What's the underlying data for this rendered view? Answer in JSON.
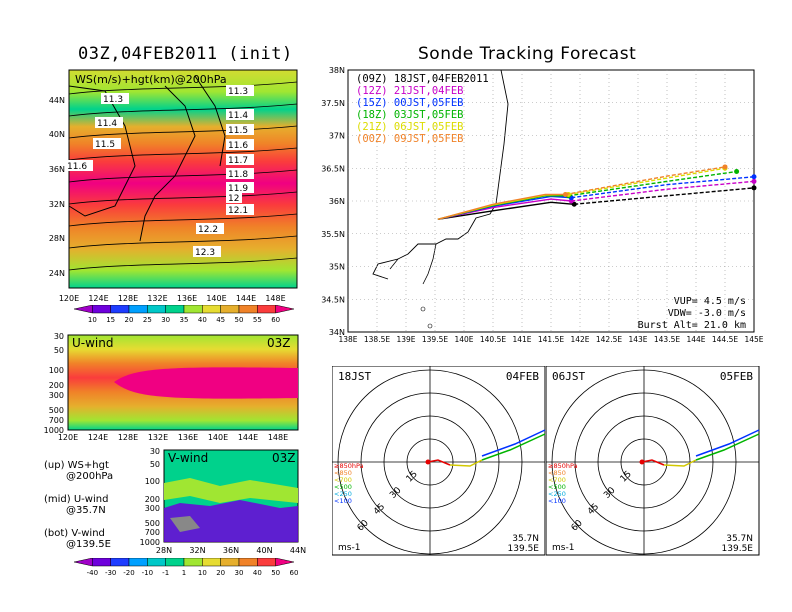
{
  "left_title": "03Z,04FEB2011 (init)",
  "right_title": "Sonde Tracking Forecast",
  "map_panel": {
    "label": "WS(m/s)+hgt(km)@200hPa",
    "lat_ticks": [
      "44N",
      "40N",
      "36N",
      "32N",
      "28N",
      "24N"
    ],
    "lon_ticks": [
      "120E",
      "124E",
      "128E",
      "132E",
      "136E",
      "140E",
      "144E",
      "148E"
    ],
    "contours": [
      "11.3",
      "11.3",
      "11.4",
      "11.4",
      "11.5",
      "11.5",
      "11.6",
      "11.6",
      "11.7",
      "11.8",
      "11.9",
      "12",
      "12.1",
      "12.2",
      "12.3"
    ]
  },
  "ws_colorbar": {
    "labels": [
      "10",
      "15",
      "20",
      "25",
      "30",
      "35",
      "40",
      "45",
      "50",
      "55",
      "60"
    ],
    "colors": [
      "#a000c8",
      "#6e00dc",
      "#1e3cff",
      "#00a0ff",
      "#00c8c8",
      "#00d28c",
      "#a0e632",
      "#e6dc32",
      "#e6af2d",
      "#f08228",
      "#fa3c3c",
      "#f00082"
    ]
  },
  "uwind_panel": {
    "label": "U-wind",
    "time": "03Z",
    "p_ticks": [
      "30",
      "50",
      "100",
      "200",
      "300",
      "500",
      "700",
      "1000"
    ],
    "lon_ticks": [
      "120E",
      "124E",
      "128E",
      "132E",
      "136E",
      "140E",
      "144E",
      "148E"
    ]
  },
  "vwind_panel": {
    "label": "V-wind",
    "time": "03Z",
    "p_ticks": [
      "30",
      "50",
      "100",
      "200",
      "300",
      "500",
      "700",
      "1000"
    ],
    "lat_ticks": [
      "28N",
      "32N",
      "36N",
      "40N",
      "44N"
    ]
  },
  "vwind_colorbar": {
    "labels": [
      "-40",
      "-30",
      "-20",
      "-10",
      "-1",
      "1",
      "10",
      "20",
      "30",
      "40",
      "50",
      "60"
    ],
    "colors": [
      "#a000c8",
      "#6e00dc",
      "#1e3cff",
      "#00a0ff",
      "#00c8c8",
      "#00d28c",
      "#a0e632",
      "#e6dc32",
      "#e6af2d",
      "#f08228",
      "#fa3c3c",
      "#f00082"
    ]
  },
  "legend_notes": [
    {
      "line1": "(up) WS+hgt",
      "line2": "@200hPa"
    },
    {
      "line1": "(mid) U-wind",
      "line2": "@35.7N"
    },
    {
      "line1": "(bot) V-wind",
      "line2": "@139.5E"
    }
  ],
  "track_panel": {
    "lat_ticks": [
      "38N",
      "37.5N",
      "37N",
      "36.5N",
      "36N",
      "35.5N",
      "35N",
      "34.5N",
      "34N"
    ],
    "lon_ticks": [
      "138E",
      "138.5E",
      "139E",
      "139.5E",
      "140E",
      "140.5E",
      "141E",
      "141.5E",
      "142E",
      "142.5E",
      "143E",
      "143.5E",
      "144E",
      "144.5E",
      "145E"
    ],
    "params": [
      "VUP= 4.5 m/s",
      "VDW= -3.0 m/s",
      "Burst Alt= 21.0 km"
    ]
  },
  "chart_data": {
    "type": "line",
    "title": "Sonde Tracking Forecast",
    "xlim": [
      138,
      145
    ],
    "ylim": [
      34,
      38
    ],
    "series": [
      {
        "name": "(09Z) 18JST,04FEB2011",
        "color": "#000000",
        "ascent_x": [
          139.55,
          140.5,
          141.5,
          141.9
        ],
        "ascent_y": [
          35.72,
          35.85,
          35.98,
          35.95
        ],
        "descent_x": [
          141.9,
          143.5,
          145.0
        ],
        "descent_y": [
          35.95,
          36.08,
          36.2
        ]
      },
      {
        "name": "(12Z) 21JST,04FEB",
        "color": "#c800c8",
        "ascent_x": [
          139.55,
          140.5,
          141.5,
          141.85
        ],
        "ascent_y": [
          35.72,
          35.9,
          36.03,
          36.0
        ],
        "descent_x": [
          141.85,
          143.5,
          145.0
        ],
        "descent_y": [
          36.0,
          36.18,
          36.3
        ]
      },
      {
        "name": "(15Z) 00JST,05FEB",
        "color": "#0032ff",
        "ascent_x": [
          139.55,
          140.5,
          141.5,
          141.85
        ],
        "ascent_y": [
          35.72,
          35.92,
          36.07,
          36.05
        ],
        "descent_x": [
          141.85,
          143.5,
          145.0
        ],
        "descent_y": [
          36.05,
          36.25,
          36.37
        ]
      },
      {
        "name": "(18Z) 03JST,05FEB",
        "color": "#00b400",
        "ascent_x": [
          139.55,
          140.5,
          141.4,
          141.8
        ],
        "ascent_y": [
          35.72,
          35.93,
          36.08,
          36.08
        ],
        "descent_x": [
          141.8,
          143.5,
          144.7
        ],
        "descent_y": [
          36.08,
          36.3,
          36.45
        ]
      },
      {
        "name": "(21Z) 06JST,05FEB",
        "color": "#dcdc00",
        "ascent_x": [
          139.55,
          140.5,
          141.4,
          141.8
        ],
        "ascent_y": [
          35.72,
          35.94,
          36.09,
          36.1
        ],
        "descent_x": [
          141.8,
          143.5,
          144.5
        ],
        "descent_y": [
          36.1,
          36.35,
          36.5
        ]
      },
      {
        "name": "(00Z) 09JST,05FEB",
        "color": "#f08228",
        "ascent_x": [
          139.55,
          140.5,
          141.4,
          141.75
        ],
        "ascent_y": [
          35.72,
          35.95,
          36.1,
          36.1
        ],
        "descent_x": [
          141.75,
          143.5,
          144.5
        ],
        "descent_y": [
          36.1,
          36.38,
          36.52
        ]
      }
    ]
  },
  "hodo_left": {
    "time": "18JST",
    "date": "04FEB",
    "lat": "35.7N",
    "lon": "139.5E",
    "unit": "ms-1",
    "ring_labels": [
      "15",
      "30",
      "45",
      "60"
    ]
  },
  "hodo_right": {
    "time": "06JST",
    "date": "05FEB",
    "lat": "35.7N",
    "lon": "139.5E",
    "unit": "ms-1",
    "ring_labels": [
      "15",
      "30",
      "45",
      "60"
    ]
  },
  "hodo_legend": [
    {
      "text": "≥850hPa",
      "color": "#e60000"
    },
    {
      "text": "<850",
      "color": "#f08228"
    },
    {
      "text": "<700",
      "color": "#d2c800"
    },
    {
      "text": "<500",
      "color": "#00b400"
    },
    {
      "text": "<250",
      "color": "#00aadc"
    },
    {
      "text": "<100",
      "color": "#0032ff"
    }
  ]
}
